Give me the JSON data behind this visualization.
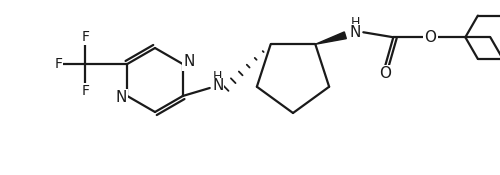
{
  "background_color": "#ffffff",
  "line_color": "#1a1a1a",
  "line_width": 1.6,
  "font_size": 10,
  "figsize": [
    5.0,
    1.75
  ],
  "dpi": 100,
  "xlim": [
    0,
    500
  ],
  "ylim": [
    0,
    175
  ]
}
